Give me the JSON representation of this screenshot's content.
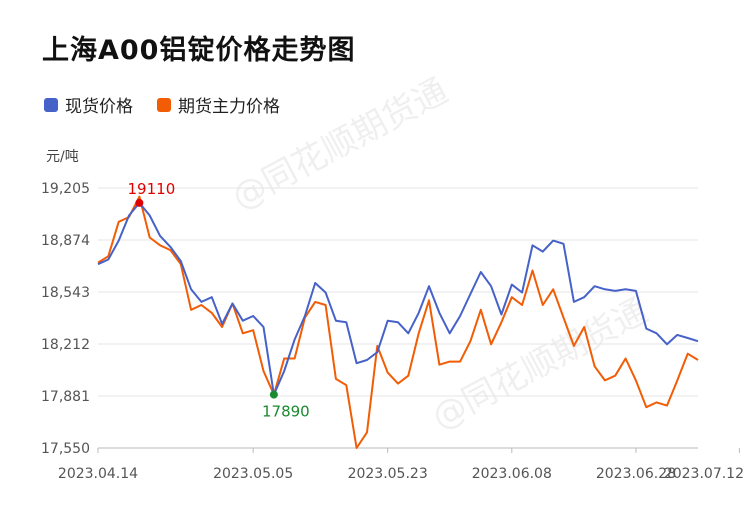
{
  "title": "上海A00铝锭价格走势图",
  "watermark": "@同花顺期货通",
  "colors": {
    "spot": "#4662c8",
    "futures": "#f25c05",
    "max": "#e00000",
    "min": "#1a8a2e",
    "grid": "#e6e6e6"
  },
  "chart_data": {
    "type": "line",
    "title": "上海A00铝锭价格走势图",
    "ylabel": "元/吨",
    "ylim": [
      17550,
      19205
    ],
    "yticks": [
      19205,
      18874,
      18543,
      18212,
      17881,
      17550
    ],
    "ytick_labels": [
      "19,205",
      "18,874",
      "18,543",
      "18,212",
      "17,881",
      "17,550"
    ],
    "xtick_labels": [
      "2023.04.14",
      "2023.05.05",
      "2023.05.23",
      "2023.06.08",
      "2023.06.28",
      "2023.07.12"
    ],
    "xtick_index": [
      0,
      15,
      28,
      40,
      52,
      62
    ],
    "grid": true,
    "legend_position": "top-left",
    "series": [
      {
        "name": "现货价格",
        "color": "#4662c8",
        "values": [
          18720,
          18750,
          18870,
          19030,
          19110,
          19030,
          18900,
          18830,
          18740,
          18560,
          18480,
          18510,
          18340,
          18470,
          18360,
          18390,
          18320,
          17890,
          18040,
          18240,
          18390,
          18600,
          18540,
          18360,
          18350,
          18090,
          18110,
          18160,
          18360,
          18350,
          18280,
          18410,
          18580,
          18410,
          18280,
          18390,
          18530,
          18670,
          18580,
          18400,
          18590,
          18540,
          18840,
          18800,
          18870,
          18850,
          18480,
          18510,
          18580,
          18560,
          18550,
          18560,
          18550,
          18310,
          18280,
          18210,
          18270,
          18250,
          18230
        ]
      },
      {
        "name": "期货主力价格",
        "color": "#f25c05",
        "values": [
          18730,
          18770,
          18990,
          19020,
          19150,
          18890,
          18840,
          18810,
          18720,
          18430,
          18460,
          18410,
          18320,
          18470,
          18280,
          18300,
          18040,
          17890,
          18120,
          18120,
          18380,
          18480,
          18460,
          17990,
          17950,
          17550,
          17650,
          18200,
          18030,
          17960,
          18010,
          18280,
          18490,
          18080,
          18100,
          18100,
          18230,
          18430,
          18210,
          18350,
          18510,
          18460,
          18680,
          18460,
          18560,
          18380,
          18200,
          18320,
          18070,
          17980,
          18010,
          18120,
          17980,
          17810,
          17840,
          17820,
          17980,
          18150,
          18110
        ]
      }
    ],
    "annotations": [
      {
        "label": "19110",
        "type": "max",
        "index": 4,
        "value": 19110
      },
      {
        "label": "17890",
        "type": "min",
        "index": 17,
        "value": 17890
      }
    ]
  }
}
